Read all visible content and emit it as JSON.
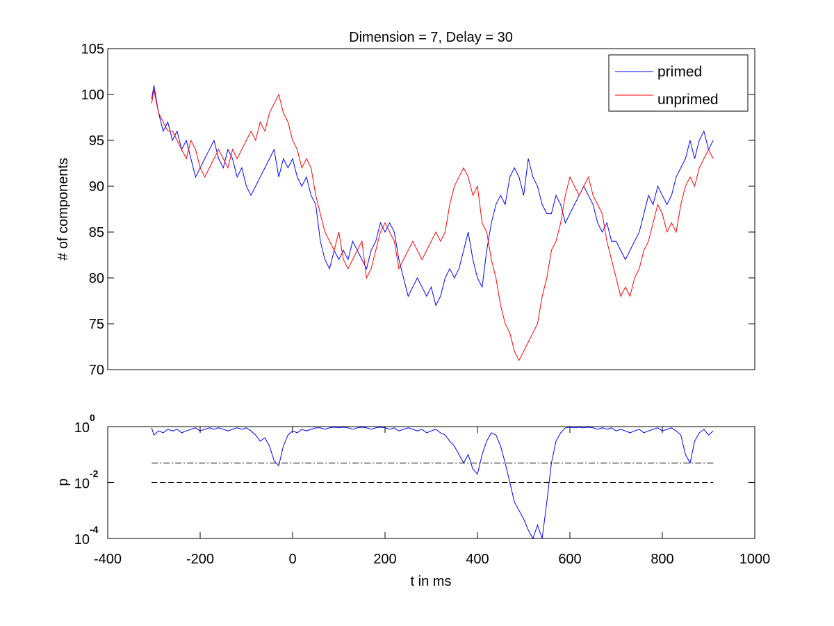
{
  "chart_data": [
    {
      "type": "line",
      "title": "Dimension  = 7, Delay = 30",
      "xlabel": "",
      "ylabel": "# of components",
      "xlim": [
        -400,
        1000
      ],
      "ylim": [
        70,
        105
      ],
      "y_ticks": [
        "70",
        "75",
        "80",
        "85",
        "90",
        "95",
        "100",
        "105"
      ],
      "grid": false,
      "legend": "top-right",
      "series": [
        {
          "name": "primed",
          "color": "#0000ff",
          "x": [
            -305,
            -300,
            -290,
            -280,
            -270,
            -260,
            -250,
            -240,
            -230,
            -220,
            -210,
            -200,
            -190,
            -180,
            -170,
            -160,
            -150,
            -140,
            -130,
            -120,
            -110,
            -100,
            -90,
            -80,
            -70,
            -60,
            -50,
            -40,
            -30,
            -20,
            -10,
            0,
            10,
            20,
            30,
            40,
            50,
            60,
            70,
            80,
            90,
            100,
            110,
            120,
            130,
            140,
            150,
            160,
            170,
            180,
            190,
            200,
            210,
            220,
            230,
            240,
            250,
            260,
            270,
            280,
            290,
            300,
            310,
            320,
            330,
            340,
            350,
            360,
            370,
            380,
            390,
            400,
            410,
            420,
            430,
            440,
            450,
            460,
            470,
            480,
            490,
            500,
            510,
            520,
            530,
            540,
            550,
            560,
            570,
            580,
            590,
            600,
            610,
            620,
            630,
            640,
            650,
            660,
            670,
            680,
            690,
            700,
            710,
            720,
            730,
            740,
            750,
            760,
            770,
            780,
            790,
            800,
            810,
            820,
            830,
            840,
            850,
            860,
            870,
            880,
            890,
            900,
            910
          ],
          "values": [
            99.5,
            101,
            98,
            96,
            97,
            95,
            96,
            94,
            95,
            93,
            91,
            92,
            93,
            94,
            95,
            93,
            92,
            94,
            93,
            91,
            92,
            90,
            89,
            90,
            91,
            92,
            93,
            94,
            91,
            93,
            92,
            93,
            91,
            90,
            91,
            89,
            88,
            84,
            82,
            81,
            83,
            82,
            83,
            82,
            84,
            83,
            82,
            81,
            83,
            84,
            86,
            85,
            86,
            85,
            82,
            80,
            78,
            79,
            80,
            79,
            78,
            79,
            77,
            78,
            80,
            81,
            80,
            81,
            83,
            85,
            82,
            80,
            79,
            83,
            86,
            88,
            89,
            88,
            91,
            92,
            91,
            89,
            93,
            91,
            90,
            88,
            87,
            87,
            89,
            88,
            86,
            87,
            88,
            89,
            90,
            89,
            88,
            86,
            85,
            86,
            84,
            84,
            83,
            82,
            83,
            84,
            85,
            87,
            89,
            88,
            90,
            89,
            88,
            89,
            91,
            92,
            93,
            95,
            93,
            95,
            96,
            94,
            95
          ]
        },
        {
          "name": "unprimed",
          "color": "#ff0000",
          "x": [
            -305,
            -300,
            -290,
            -280,
            -270,
            -260,
            -250,
            -240,
            -230,
            -220,
            -210,
            -200,
            -190,
            -180,
            -170,
            -160,
            -150,
            -140,
            -130,
            -120,
            -110,
            -100,
            -90,
            -80,
            -70,
            -60,
            -50,
            -40,
            -30,
            -20,
            -10,
            0,
            10,
            20,
            30,
            40,
            50,
            60,
            70,
            80,
            90,
            100,
            110,
            120,
            130,
            140,
            150,
            160,
            170,
            180,
            190,
            200,
            210,
            220,
            230,
            240,
            250,
            260,
            270,
            280,
            290,
            300,
            310,
            320,
            330,
            340,
            350,
            360,
            370,
            380,
            390,
            400,
            410,
            420,
            430,
            440,
            450,
            460,
            470,
            480,
            490,
            500,
            510,
            520,
            530,
            540,
            550,
            560,
            570,
            580,
            590,
            600,
            610,
            620,
            630,
            640,
            650,
            660,
            670,
            680,
            690,
            700,
            710,
            720,
            730,
            740,
            750,
            760,
            770,
            780,
            790,
            800,
            810,
            820,
            830,
            840,
            850,
            860,
            870,
            880,
            890,
            900,
            910
          ],
          "values": [
            99,
            100.5,
            98,
            97,
            96,
            96,
            95,
            94,
            93,
            95,
            94,
            92,
            91,
            92,
            93,
            94,
            93,
            92,
            94,
            93,
            94,
            95,
            96,
            95,
            97,
            96,
            98,
            99,
            100,
            98,
            97,
            95,
            94,
            92,
            93,
            92,
            89,
            87,
            85,
            84,
            83,
            85,
            82,
            81,
            82,
            83,
            84,
            80,
            81,
            83,
            85,
            86,
            85,
            84,
            81,
            82,
            83,
            84,
            83,
            82,
            83,
            84,
            85,
            84,
            85,
            88,
            90,
            91,
            92,
            91,
            89,
            90,
            86,
            85,
            82,
            80,
            77,
            75,
            74,
            72,
            71,
            72,
            73,
            74,
            75,
            78,
            80,
            83,
            84,
            86,
            89,
            91,
            90,
            89,
            90,
            91,
            89,
            88,
            87,
            84,
            82,
            80,
            78,
            79,
            78,
            80,
            81,
            83,
            84,
            86,
            88,
            87,
            85,
            86,
            85,
            88,
            90,
            91,
            90,
            92,
            93,
            94,
            93
          ]
        }
      ]
    },
    {
      "type": "line",
      "title": "",
      "xlabel": "t in ms",
      "ylabel": "p",
      "xlim": [
        -400,
        1000
      ],
      "x_ticks": [
        "-400",
        "-200",
        "0",
        "200",
        "400",
        "600",
        "800",
        "1000"
      ],
      "ylim": [
        0.0001,
        1
      ],
      "yscale": "log",
      "y_ticks": [
        {
          "base": "10",
          "exp": "0",
          "value": 1
        },
        {
          "base": "10",
          "exp": "-2",
          "value": 0.01
        },
        {
          "base": "10",
          "exp": "-4",
          "value": 0.0001
        }
      ],
      "grid": false,
      "series": [
        {
          "color": "#0000ff",
          "x": [
            -305,
            -300,
            -290,
            -280,
            -270,
            -260,
            -250,
            -240,
            -230,
            -220,
            -210,
            -200,
            -190,
            -180,
            -170,
            -160,
            -150,
            -140,
            -130,
            -120,
            -110,
            -100,
            -90,
            -80,
            -70,
            -60,
            -50,
            -40,
            -30,
            -20,
            -10,
            0,
            10,
            20,
            30,
            40,
            50,
            60,
            70,
            80,
            90,
            100,
            110,
            120,
            130,
            140,
            150,
            160,
            170,
            180,
            190,
            200,
            210,
            220,
            230,
            240,
            250,
            260,
            270,
            280,
            290,
            300,
            310,
            320,
            330,
            340,
            350,
            360,
            370,
            380,
            390,
            400,
            410,
            420,
            430,
            440,
            450,
            460,
            470,
            480,
            490,
            500,
            510,
            520,
            530,
            540,
            550,
            560,
            570,
            580,
            590,
            600,
            610,
            620,
            630,
            640,
            650,
            660,
            670,
            680,
            690,
            700,
            710,
            720,
            730,
            740,
            750,
            760,
            770,
            780,
            790,
            800,
            810,
            820,
            830,
            840,
            850,
            860,
            870,
            880,
            890,
            900,
            910
          ],
          "values": [
            0.9,
            0.5,
            0.7,
            0.6,
            0.8,
            0.7,
            0.8,
            0.6,
            0.7,
            0.8,
            0.9,
            0.7,
            0.8,
            0.9,
            0.8,
            0.9,
            0.8,
            0.7,
            0.8,
            0.9,
            0.8,
            0.9,
            0.7,
            0.5,
            0.3,
            0.4,
            0.2,
            0.06,
            0.04,
            0.2,
            0.5,
            0.7,
            0.6,
            0.8,
            0.7,
            0.8,
            0.9,
            0.9,
            0.8,
            0.9,
            0.95,
            0.9,
            0.95,
            0.9,
            0.8,
            0.9,
            0.95,
            0.9,
            0.8,
            0.9,
            0.95,
            0.9,
            0.8,
            0.9,
            0.7,
            0.8,
            0.9,
            0.8,
            0.7,
            0.8,
            0.6,
            0.7,
            0.8,
            0.6,
            0.5,
            0.3,
            0.2,
            0.1,
            0.05,
            0.1,
            0.03,
            0.02,
            0.1,
            0.3,
            0.6,
            0.5,
            0.2,
            0.05,
            0.01,
            0.002,
            0.001,
            0.0005,
            0.0002,
            0.0001,
            0.0003,
            0.0001,
            0.002,
            0.05,
            0.3,
            0.6,
            0.9,
            0.95,
            0.9,
            0.95,
            0.9,
            0.95,
            0.9,
            0.8,
            0.9,
            0.8,
            0.9,
            0.7,
            0.8,
            0.7,
            0.6,
            0.7,
            0.8,
            0.6,
            0.7,
            0.8,
            0.9,
            0.7,
            0.8,
            0.9,
            0.7,
            0.5,
            0.1,
            0.05,
            0.3,
            0.6,
            0.8,
            0.5,
            0.7
          ]
        },
        {
          "color": "#000000",
          "dash": "dash-dot",
          "x": [
            -305,
            910
          ],
          "values": [
            0.05,
            0.05
          ]
        },
        {
          "color": "#000000",
          "dash": "dashed",
          "x": [
            -305,
            910
          ],
          "values": [
            0.01,
            0.01
          ]
        }
      ]
    }
  ]
}
